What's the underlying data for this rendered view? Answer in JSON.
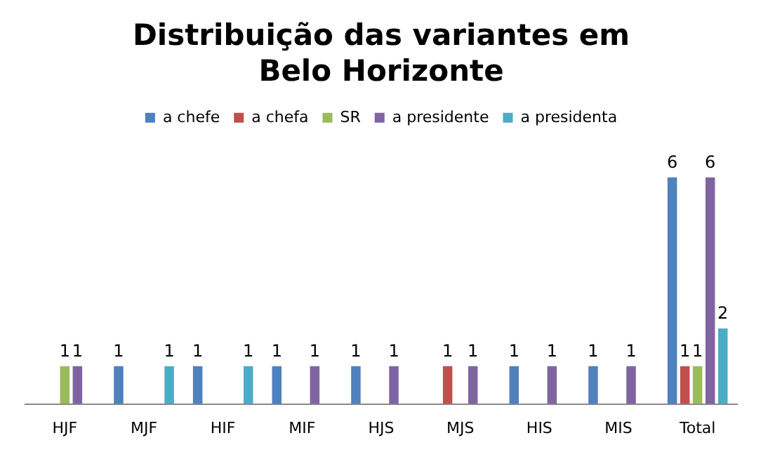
{
  "chart_data": {
    "type": "bar",
    "title": "Distribuição das variantes em Belo Horizonte",
    "categories": [
      "HJF",
      "MJF",
      "HIF",
      "MIF",
      "HJS",
      "MJS",
      "HIS",
      "MIS",
      "Total"
    ],
    "series": [
      {
        "name": "a chefe",
        "color": "#4f81bd",
        "values": [
          null,
          1,
          1,
          1,
          1,
          null,
          1,
          1,
          6
        ]
      },
      {
        "name": "a chefa",
        "color": "#c0504d",
        "values": [
          null,
          null,
          null,
          null,
          null,
          1,
          null,
          null,
          1
        ]
      },
      {
        "name": "SR",
        "color": "#9bbb59",
        "values": [
          1,
          null,
          null,
          null,
          null,
          null,
          null,
          null,
          1
        ]
      },
      {
        "name": "a presidente",
        "color": "#8064a2",
        "values": [
          1,
          null,
          null,
          1,
          1,
          1,
          1,
          1,
          6
        ]
      },
      {
        "name": "a presidenta",
        "color": "#4bacc6",
        "values": [
          null,
          1,
          1,
          null,
          null,
          null,
          null,
          null,
          2
        ]
      }
    ],
    "data_labels": true,
    "legend": "top",
    "grid": false
  }
}
